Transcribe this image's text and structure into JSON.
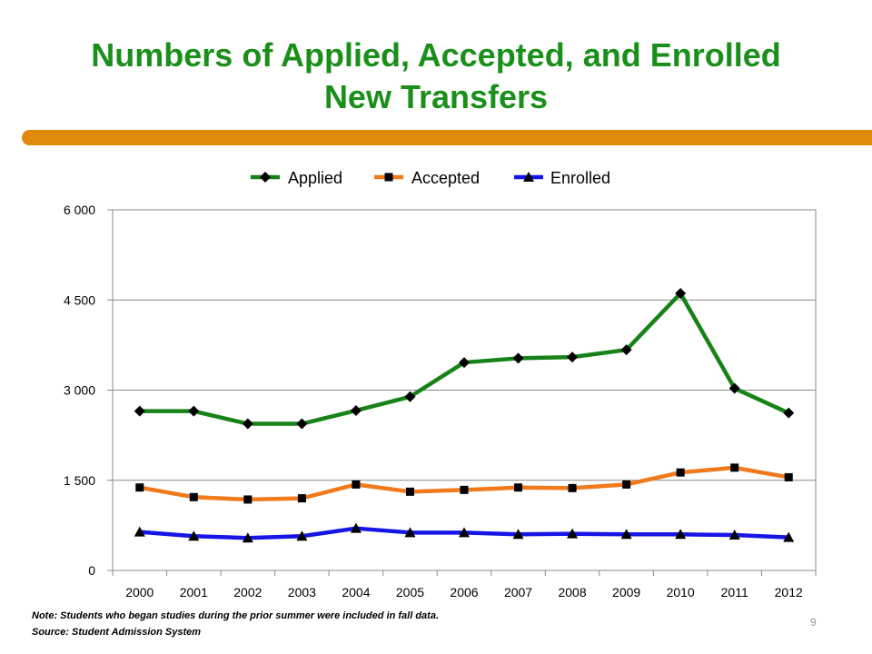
{
  "title_line1": "Numbers of Applied, Accepted, and Enrolled",
  "title_line2": "New Transfers",
  "note": "Note: Students who began studies during the prior summer were included in fall data.",
  "source": "Source:  Student Admission System",
  "page_number": "9",
  "chart_data": {
    "type": "line",
    "categories": [
      "2000",
      "2001",
      "2002",
      "2003",
      "2004",
      "2005",
      "2006",
      "2007",
      "2008",
      "2009",
      "2010",
      "2011",
      "2012"
    ],
    "y_ticks": [
      "0",
      "1 500",
      "3 000",
      "4 500",
      "6 000"
    ],
    "ylim": [
      0,
      6000
    ],
    "grid": true,
    "legend_position": "top",
    "series": [
      {
        "name": "Applied",
        "color": "#178217",
        "marker": "diamond",
        "values": [
          2650,
          2650,
          2440,
          2440,
          2660,
          2890,
          3460,
          3530,
          3550,
          3670,
          4610,
          3030,
          2620
        ]
      },
      {
        "name": "Accepted",
        "color": "#f07a1c",
        "marker": "square",
        "values": [
          1380,
          1220,
          1180,
          1200,
          1430,
          1310,
          1340,
          1380,
          1370,
          1430,
          1630,
          1710,
          1550
        ]
      },
      {
        "name": "Enrolled",
        "color": "#1515e6",
        "marker": "triangle",
        "values": [
          640,
          570,
          540,
          570,
          700,
          630,
          630,
          600,
          610,
          600,
          600,
          590,
          550
        ]
      }
    ]
  }
}
